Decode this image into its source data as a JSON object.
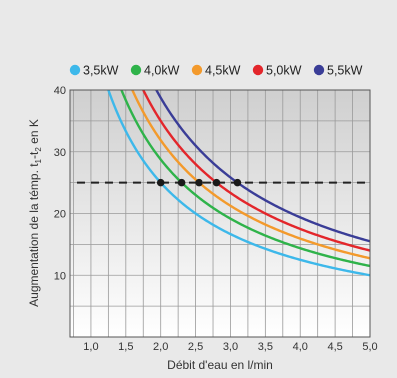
{
  "chart_data": {
    "type": "line",
    "xlabel": "Débit d'eau en l/min",
    "ylabel": "Augmentation de la témp. t1-t2 en K",
    "ylabel_parts": [
      "Augmentation de la témp. t",
      "1",
      "-t",
      "2",
      " en K"
    ],
    "xlim": [
      0.7,
      5.0
    ],
    "ylim": [
      0,
      40
    ],
    "x_ticks": [
      "1,0",
      "1,5",
      "2,0",
      "2,5",
      "3,0",
      "3,5",
      "4,0",
      "4,5",
      "5,0"
    ],
    "x_tick_values": [
      1.0,
      1.5,
      2.0,
      2.5,
      3.0,
      3.5,
      4.0,
      4.5,
      5.0
    ],
    "y_ticks": [
      "10",
      "20",
      "30",
      "40"
    ],
    "y_tick_values": [
      10,
      20,
      30,
      40
    ],
    "grid": true,
    "legend_position": "top",
    "reference_line": {
      "y": 25,
      "style": "dashed",
      "color": "#222222"
    },
    "series": [
      {
        "name": "3,5kW",
        "color": "#3db8ea",
        "power_kw": 3.5,
        "marker_x": 2.0
      },
      {
        "name": "4,0kW",
        "color": "#2fb34a",
        "power_kw": 4.0,
        "marker_x": 2.3
      },
      {
        "name": "4,5kW",
        "color": "#f39a2c",
        "power_kw": 4.5,
        "marker_x": 2.55
      },
      {
        "name": "5,0kW",
        "color": "#e3262b",
        "power_kw": 5.0,
        "marker_x": 2.8
      },
      {
        "name": "5,5kW",
        "color": "#3a3d97",
        "power_kw": 5.5,
        "marker_x": 3.1
      }
    ]
  }
}
